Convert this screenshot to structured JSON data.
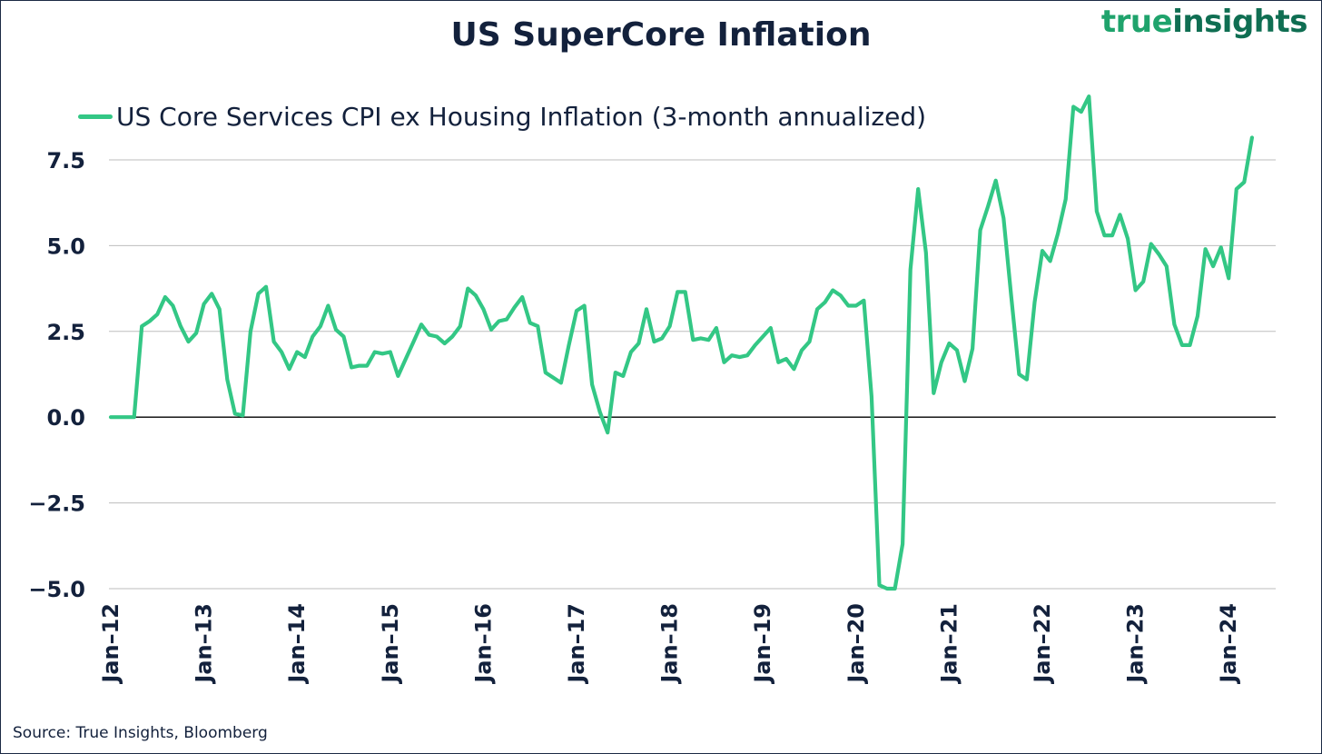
{
  "logo": {
    "word1": "true",
    "word2": "insights"
  },
  "source": "Source: True Insights, Bloomberg",
  "colors": {
    "series": "#33c785",
    "text": "#13213c",
    "grid": "#bdbdbd",
    "zero": "#000000"
  },
  "chart_data": {
    "type": "line",
    "title": "US SuperCore Inflation",
    "xlabel": "",
    "ylabel": "",
    "ylim": [
      -5.0,
      9.5
    ],
    "yticks": [
      -5.0,
      -2.5,
      0.0,
      2.5,
      5.0,
      7.5
    ],
    "ytick_labels": [
      "−5.0",
      "−2.5",
      "0.0",
      "2.5",
      "5.0",
      "7.5"
    ],
    "grid": true,
    "legend_position": "top-left",
    "x_start": "Jan-12",
    "x_end": "Apr-24",
    "xtick_labels": [
      "Jan–12",
      "Jan–13",
      "Jan–14",
      "Jan–15",
      "Jan–16",
      "Jan–17",
      "Jan–18",
      "Jan–19",
      "Jan–20",
      "Jan–21",
      "Jan–22",
      "Jan–23",
      "Jan–24"
    ],
    "series": [
      {
        "name": "US Core Services CPI ex Housing Inflation (3-month annualized)",
        "values": [
          0.0,
          0.0,
          0.0,
          0.0,
          2.65,
          2.8,
          3.0,
          3.5,
          3.25,
          2.65,
          2.2,
          2.45,
          3.3,
          3.6,
          3.15,
          1.1,
          0.1,
          0.05,
          2.5,
          3.6,
          3.8,
          2.2,
          1.9,
          1.4,
          1.9,
          1.75,
          2.35,
          2.65,
          3.25,
          2.55,
          2.35,
          1.45,
          1.5,
          1.5,
          1.9,
          1.85,
          1.9,
          1.2,
          1.7,
          2.2,
          2.7,
          2.4,
          2.35,
          2.15,
          2.35,
          2.65,
          3.75,
          3.55,
          3.15,
          2.55,
          2.8,
          2.85,
          3.2,
          3.5,
          2.75,
          2.65,
          1.3,
          1.15,
          1.0,
          2.1,
          3.1,
          3.25,
          0.95,
          0.15,
          -0.45,
          1.3,
          1.2,
          1.9,
          2.15,
          3.15,
          2.2,
          2.3,
          2.65,
          3.65,
          3.65,
          2.25,
          2.3,
          2.25,
          2.6,
          1.6,
          1.8,
          1.75,
          1.8,
          2.1,
          2.35,
          2.6,
          1.6,
          1.7,
          1.4,
          1.95,
          2.2,
          3.15,
          3.35,
          3.7,
          3.55,
          3.25,
          3.25,
          3.4,
          0.6,
          -4.9,
          -5.0,
          -5.0,
          -3.7,
          4.3,
          6.65,
          4.8,
          0.7,
          1.6,
          2.15,
          1.95,
          1.05,
          2.0,
          5.45,
          6.15,
          6.9,
          5.8,
          3.5,
          1.25,
          1.1,
          3.35,
          4.85,
          4.55,
          5.35,
          6.35,
          9.05,
          8.9,
          9.35,
          6.0,
          5.3,
          5.3,
          5.9,
          5.2,
          3.7,
          3.95,
          5.05,
          4.75,
          4.4,
          2.7,
          2.1,
          2.1,
          2.95,
          4.9,
          4.4,
          4.95,
          4.05,
          6.65,
          6.85,
          8.15
        ]
      }
    ]
  }
}
